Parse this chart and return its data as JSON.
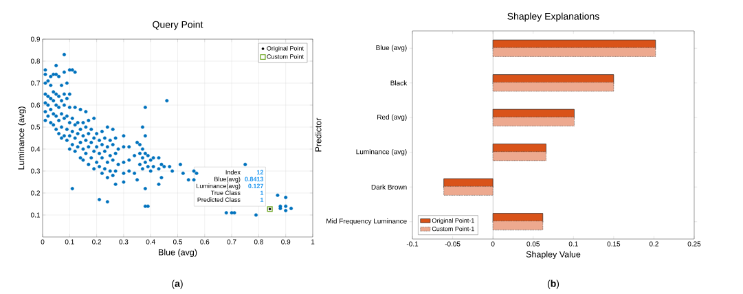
{
  "chart_data": [
    {
      "type": "scatter",
      "title": "Query Point",
      "xlabel": "Blue (avg)",
      "ylabel": "Luminance (avg)",
      "xlim": [
        0,
        1
      ],
      "ylim": [
        0,
        0.9
      ],
      "xticks": [
        0,
        0.1,
        0.2,
        0.3,
        0.4,
        0.5,
        0.6,
        0.7,
        0.8,
        0.9,
        1
      ],
      "yticks": [
        0.1,
        0.2,
        0.3,
        0.4,
        0.5,
        0.6,
        0.7,
        0.8,
        0.9
      ],
      "grid": true,
      "legend": "top right",
      "series": [
        {
          "color": "#0072bd",
          "marker": "circle",
          "x": [
            0.01,
            0.01,
            0.01,
            0.01,
            0.01,
            0.01,
            0.01,
            0.02,
            0.02,
            0.02,
            0.02,
            0.03,
            0.03,
            0.03,
            0.03,
            0.03,
            0.04,
            0.04,
            0.04,
            0.04,
            0.04,
            0.05,
            0.05,
            0.05,
            0.05,
            0.05,
            0.05,
            0.06,
            0.06,
            0.06,
            0.06,
            0.06,
            0.07,
            0.07,
            0.07,
            0.07,
            0.07,
            0.08,
            0.08,
            0.08,
            0.08,
            0.08,
            0.08,
            0.09,
            0.09,
            0.09,
            0.09,
            0.09,
            0.1,
            0.1,
            0.1,
            0.1,
            0.1,
            0.1,
            0.11,
            0.11,
            0.11,
            0.11,
            0.11,
            0.12,
            0.12,
            0.12,
            0.12,
            0.12,
            0.13,
            0.13,
            0.13,
            0.14,
            0.14,
            0.14,
            0.14,
            0.15,
            0.15,
            0.15,
            0.15,
            0.16,
            0.16,
            0.16,
            0.16,
            0.17,
            0.17,
            0.17,
            0.17,
            0.18,
            0.18,
            0.18,
            0.19,
            0.19,
            0.19,
            0.19,
            0.2,
            0.2,
            0.2,
            0.21,
            0.21,
            0.21,
            0.21,
            0.22,
            0.22,
            0.22,
            0.22,
            0.23,
            0.23,
            0.23,
            0.24,
            0.24,
            0.24,
            0.24,
            0.24,
            0.25,
            0.25,
            0.25,
            0.26,
            0.26,
            0.26,
            0.26,
            0.27,
            0.27,
            0.27,
            0.27,
            0.28,
            0.28,
            0.3,
            0.3,
            0.3,
            0.3,
            0.3,
            0.32,
            0.32,
            0.32,
            0.34,
            0.34,
            0.35,
            0.35,
            0.36,
            0.36,
            0.36,
            0.37,
            0.37,
            0.37,
            0.37,
            0.38,
            0.38,
            0.38,
            0.38,
            0.38,
            0.38,
            0.39,
            0.39,
            0.39,
            0.4,
            0.4,
            0.41,
            0.41,
            0.43,
            0.43,
            0.43,
            0.44,
            0.44,
            0.45,
            0.46,
            0.47,
            0.48,
            0.51,
            0.52,
            0.54,
            0.56,
            0.56,
            0.57,
            0.68,
            0.7,
            0.71,
            0.75,
            0.79,
            0.87,
            0.88,
            0.88,
            0.9,
            0.9,
            0.9,
            0.92
          ],
          "values": [
            0.53,
            0.57,
            0.61,
            0.65,
            0.7,
            0.74,
            0.76,
            0.55,
            0.6,
            0.64,
            0.71,
            0.52,
            0.58,
            0.63,
            0.69,
            0.73,
            0.51,
            0.56,
            0.62,
            0.66,
            0.74,
            0.49,
            0.55,
            0.6,
            0.65,
            0.78,
            0.74,
            0.47,
            0.53,
            0.59,
            0.64,
            0.73,
            0.45,
            0.5,
            0.56,
            0.62,
            0.69,
            0.46,
            0.54,
            0.6,
            0.65,
            0.83,
            0.75,
            0.44,
            0.49,
            0.55,
            0.63,
            0.7,
            0.4,
            0.46,
            0.52,
            0.59,
            0.65,
            0.76,
            0.42,
            0.48,
            0.54,
            0.22,
            0.76,
            0.39,
            0.45,
            0.51,
            0.59,
            0.75,
            0.41,
            0.47,
            0.52,
            0.36,
            0.43,
            0.49,
            0.58,
            0.35,
            0.4,
            0.46,
            0.52,
            0.38,
            0.44,
            0.5,
            0.57,
            0.33,
            0.41,
            0.47,
            0.53,
            0.36,
            0.43,
            0.49,
            0.31,
            0.39,
            0.45,
            0.54,
            0.34,
            0.41,
            0.47,
            0.32,
            0.38,
            0.44,
            0.17,
            0.29,
            0.36,
            0.42,
            0.48,
            0.31,
            0.39,
            0.45,
            0.27,
            0.34,
            0.41,
            0.5,
            0.16,
            0.3,
            0.37,
            0.44,
            0.28,
            0.35,
            0.42,
            0.49,
            0.3,
            0.38,
            0.45,
            0.24,
            0.33,
            0.4,
            0.25,
            0.29,
            0.34,
            0.41,
            0.46,
            0.3,
            0.35,
            0.41,
            0.29,
            0.37,
            0.26,
            0.43,
            0.33,
            0.38,
            0.42,
            0.31,
            0.36,
            0.4,
            0.5,
            0.22,
            0.14,
            0.34,
            0.38,
            0.46,
            0.59,
            0.32,
            0.37,
            0.14,
            0.3,
            0.35,
            0.32,
            0.36,
            0.24,
            0.31,
            0.36,
            0.27,
            0.33,
            0.32,
            0.62,
            0.32,
            0.3,
            0.33,
            0.29,
            0.26,
            0.3,
            0.26,
            0.29,
            0.11,
            0.11,
            0.11,
            0.33,
            0.1,
            0.19,
            0.14,
            0.13,
            0.18,
            0.14,
            0.12,
            0.13
          ]
        },
        {
          "name": "Original Point",
          "color": "#000000",
          "marker": "circle",
          "x": [
            0.8413
          ],
          "values": [
            0.127
          ]
        },
        {
          "name": "Custom Point",
          "color": "#77ac30",
          "marker": "square",
          "x": [
            0.8413
          ],
          "values": [
            0.127
          ]
        }
      ],
      "annotations": [
        "Index",
        "12",
        "Blue(avg)",
        "0.8413",
        "Luminance(avg)",
        "0.127",
        "True Class",
        "1",
        "Predicted Class",
        "1",
        "(**a**)"
      ]
    },
    {
      "type": "bar",
      "orientation": "horizontal",
      "title": "Shapley Explanations",
      "xlabel": "Shapley Value",
      "ylabel": "Predictor",
      "categories": [
        "Blue (avg)",
        "Black",
        "Red (avg)",
        "Luminance (avg)",
        "Dark Brown",
        "Mid Frequency Luminance"
      ],
      "xlim": [
        -0.1,
        0.25
      ],
      "xticks": [
        -0.1,
        -0.05,
        0,
        0.05,
        0.1,
        0.15,
        0.2,
        0.25
      ],
      "legend": "bottom left",
      "series": [
        {
          "name": "Original Point-1",
          "color": "#d95319",
          "line_style": "solid",
          "values": [
            0.202,
            0.15,
            0.101,
            0.066,
            -0.061,
            0.062
          ]
        },
        {
          "name": "Custom Point-1",
          "color": "#eda98f",
          "line_style": "dotted",
          "values": [
            0.202,
            0.15,
            0.101,
            0.066,
            -0.061,
            0.062
          ]
        }
      ],
      "ref_lines": [
        {
          "axis": "x",
          "value": 0,
          "color": "#808080"
        }
      ],
      "annotations": [
        "(**b**)"
      ]
    }
  ]
}
